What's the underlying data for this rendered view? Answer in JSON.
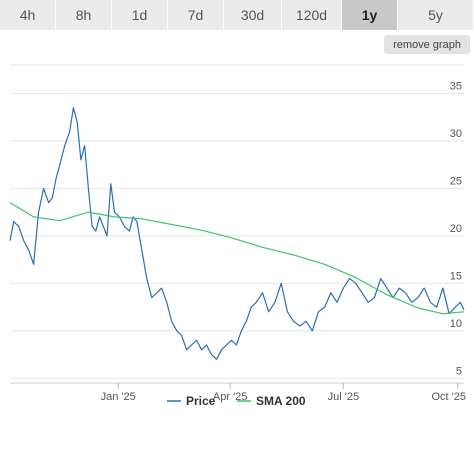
{
  "tabs": [
    {
      "label": "4h",
      "active": false
    },
    {
      "label": "8h",
      "active": false
    },
    {
      "label": "1d",
      "active": false
    },
    {
      "label": "7d",
      "active": false
    },
    {
      "label": "30d",
      "active": false
    },
    {
      "label": "120d",
      "active": false
    },
    {
      "label": "1y",
      "active": true
    },
    {
      "label": "5y",
      "active": false
    }
  ],
  "remove_graph_label": "remove graph",
  "colors": {
    "price": "#2a6fb0",
    "sma": "#3ec46a",
    "grid": "#e6e6e6"
  },
  "chart_data": {
    "type": "line",
    "title": "",
    "xlabel": "",
    "ylabel": "",
    "ylim": [
      4.5,
      38
    ],
    "xlim": [
      "2024-10-06",
      "2025-10-06"
    ],
    "y_ticks": [
      5,
      10,
      15,
      20,
      25,
      30,
      35
    ],
    "x_ticks": [
      {
        "date": "2025-01-01",
        "label": "Jan '25"
      },
      {
        "date": "2025-04-01",
        "label": "Apr '25"
      },
      {
        "date": "2025-07-01",
        "label": "Jul '25"
      },
      {
        "date": "2025-10-01",
        "label": "Oct '25"
      }
    ],
    "grid": "horizontal",
    "legend": "bottom-center",
    "series": [
      {
        "name": "Price",
        "x": [
          "2024-10-06",
          "2024-10-09",
          "2024-10-13",
          "2024-10-17",
          "2024-10-21",
          "2024-10-25",
          "2024-10-29",
          "2024-11-02",
          "2024-11-06",
          "2024-11-09",
          "2024-11-12",
          "2024-11-15",
          "2024-11-19",
          "2024-11-23",
          "2024-11-26",
          "2024-11-29",
          "2024-12-02",
          "2024-12-05",
          "2024-12-08",
          "2024-12-11",
          "2024-12-14",
          "2024-12-17",
          "2024-12-20",
          "2024-12-23",
          "2024-12-26",
          "2024-12-29",
          "2025-01-02",
          "2025-01-06",
          "2025-01-10",
          "2025-01-13",
          "2025-01-16",
          "2025-01-20",
          "2025-01-24",
          "2025-01-28",
          "2025-02-01",
          "2025-02-05",
          "2025-02-09",
          "2025-02-13",
          "2025-02-17",
          "2025-02-21",
          "2025-02-25",
          "2025-03-01",
          "2025-03-05",
          "2025-03-09",
          "2025-03-13",
          "2025-03-17",
          "2025-03-21",
          "2025-03-25",
          "2025-03-29",
          "2025-04-02",
          "2025-04-06",
          "2025-04-10",
          "2025-04-14",
          "2025-04-18",
          "2025-04-22",
          "2025-04-27",
          "2025-05-02",
          "2025-05-07",
          "2025-05-12",
          "2025-05-17",
          "2025-05-22",
          "2025-05-27",
          "2025-06-01",
          "2025-06-06",
          "2025-06-11",
          "2025-06-16",
          "2025-06-21",
          "2025-06-26",
          "2025-07-01",
          "2025-07-06",
          "2025-07-11",
          "2025-07-16",
          "2025-07-21",
          "2025-07-26",
          "2025-07-31",
          "2025-08-05",
          "2025-08-10",
          "2025-08-15",
          "2025-08-20",
          "2025-08-25",
          "2025-08-30",
          "2025-09-04",
          "2025-09-09",
          "2025-09-14",
          "2025-09-19",
          "2025-09-24",
          "2025-09-29",
          "2025-10-03",
          "2025-10-06"
        ],
        "values": [
          19.5,
          21.5,
          21.0,
          19.5,
          18.5,
          17.0,
          22.5,
          25.0,
          23.5,
          24.0,
          26.0,
          27.5,
          29.5,
          31.0,
          33.5,
          32.0,
          28.0,
          29.5,
          25.0,
          21.0,
          20.5,
          22.0,
          21.0,
          20.0,
          25.5,
          22.5,
          22.0,
          21.0,
          20.5,
          22.0,
          21.5,
          18.5,
          15.5,
          13.5,
          14.0,
          14.5,
          13.0,
          11.0,
          10.0,
          9.5,
          8.0,
          8.5,
          9.0,
          8.0,
          8.5,
          7.5,
          7.0,
          8.0,
          8.5,
          9.0,
          8.5,
          10.0,
          11.0,
          12.5,
          13.0,
          14.0,
          12.0,
          13.0,
          15.0,
          12.0,
          11.0,
          10.5,
          11.0,
          10.0,
          12.0,
          12.5,
          14.0,
          13.0,
          14.5,
          15.5,
          15.0,
          14.0,
          13.0,
          13.5,
          15.5,
          14.5,
          13.5,
          14.5,
          14.0,
          13.0,
          13.5,
          14.5,
          13.0,
          12.5,
          14.5,
          11.8,
          12.5,
          13.0,
          12.2
        ]
      },
      {
        "name": "SMA 200",
        "x": [
          "2024-10-06",
          "2024-10-25",
          "2024-11-15",
          "2024-12-08",
          "2024-12-29",
          "2025-01-20",
          "2025-02-13",
          "2025-03-09",
          "2025-04-02",
          "2025-04-27",
          "2025-05-22",
          "2025-06-16",
          "2025-07-11",
          "2025-08-05",
          "2025-08-30",
          "2025-09-19",
          "2025-10-06"
        ],
        "values": [
          23.5,
          22.0,
          21.6,
          22.5,
          22.0,
          21.8,
          21.2,
          20.6,
          19.8,
          18.8,
          18.0,
          17.0,
          15.6,
          13.8,
          12.4,
          11.8,
          12.0
        ]
      }
    ]
  }
}
